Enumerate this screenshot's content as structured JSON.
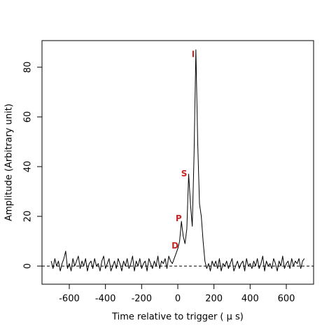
{
  "chart_data": {
    "type": "line",
    "xlabel": "Time relative to trigger ( μ s)",
    "ylabel": "Amplitude (Arbitrary unit)",
    "x": [
      -700,
      -690,
      -680,
      -670,
      -660,
      -650,
      -640,
      -630,
      -620,
      -610,
      -600,
      -590,
      -580,
      -570,
      -560,
      -550,
      -540,
      -530,
      -520,
      -510,
      -500,
      -490,
      -480,
      -470,
      -460,
      -450,
      -440,
      -430,
      -420,
      -410,
      -400,
      -390,
      -380,
      -370,
      -360,
      -350,
      -340,
      -330,
      -320,
      -310,
      -300,
      -290,
      -280,
      -270,
      -260,
      -250,
      -240,
      -230,
      -220,
      -210,
      -200,
      -190,
      -180,
      -170,
      -160,
      -150,
      -140,
      -130,
      -120,
      -110,
      -100,
      -90,
      -80,
      -70,
      -60,
      -50,
      -40,
      -30,
      -20,
      -10,
      0,
      10,
      20,
      30,
      40,
      50,
      60,
      70,
      80,
      90,
      100,
      110,
      120,
      130,
      140,
      150,
      160,
      170,
      180,
      190,
      200,
      210,
      220,
      230,
      240,
      250,
      260,
      270,
      280,
      290,
      300,
      310,
      320,
      330,
      340,
      350,
      360,
      370,
      380,
      390,
      400,
      410,
      420,
      430,
      440,
      450,
      460,
      470,
      480,
      490,
      500,
      510,
      520,
      530,
      540,
      550,
      560,
      570,
      580,
      590,
      600,
      610,
      620,
      630,
      640,
      650,
      660,
      670,
      680,
      690,
      700
    ],
    "series": [
      {
        "color": "#000000",
        "values": [
          2,
          -1,
          3,
          0,
          2,
          -2,
          1,
          3,
          6,
          -1,
          1,
          -2,
          3,
          0,
          2,
          4,
          -1,
          2,
          0,
          3,
          -2,
          1,
          2,
          -1,
          3,
          0,
          1,
          -2,
          2,
          4,
          -1,
          1,
          3,
          -2,
          0,
          2,
          -1,
          3,
          1,
          -2,
          2,
          0,
          3,
          -1,
          1,
          4,
          -2,
          2,
          0,
          3,
          -1,
          1,
          2,
          -2,
          3,
          1,
          -1,
          2,
          0,
          4,
          -1,
          2,
          1,
          3,
          -1,
          4,
          2,
          1,
          3,
          5,
          7,
          10,
          18,
          12,
          9,
          15,
          37,
          25,
          16,
          45,
          87,
          50,
          25,
          20,
          10,
          2,
          -1,
          1,
          -2,
          2,
          0,
          2,
          -1,
          3,
          -2,
          1,
          0,
          2,
          -1,
          1,
          3,
          -2,
          0,
          2,
          -1,
          1,
          2,
          -2,
          3,
          0,
          1,
          -1,
          2,
          0,
          3,
          -1,
          1,
          4,
          -2,
          2,
          0,
          1,
          -1,
          3,
          1,
          -2,
          2,
          0,
          4,
          -1,
          1,
          2,
          -1,
          3,
          0,
          2,
          1,
          3,
          -1,
          2,
          3
        ]
      }
    ],
    "hline": {
      "value": 0,
      "color": "#000000",
      "dash": true
    },
    "annotations": [
      {
        "text": "D",
        "x": -15,
        "y": 8,
        "color": "#c62828"
      },
      {
        "text": "P",
        "x": 5,
        "y": 19,
        "color": "#c62828"
      },
      {
        "text": "S",
        "x": 35,
        "y": 37,
        "color": "#c62828"
      },
      {
        "text": "I",
        "x": 85,
        "y": 85,
        "color": "#c62828"
      }
    ],
    "xlim": [
      -751,
      751
    ],
    "xticks": [
      -600,
      -400,
      -200,
      0,
      200,
      400,
      600
    ],
    "ylim": [
      -7.3,
      90.7
    ],
    "yticks": [
      0,
      20,
      40,
      60,
      80
    ]
  }
}
